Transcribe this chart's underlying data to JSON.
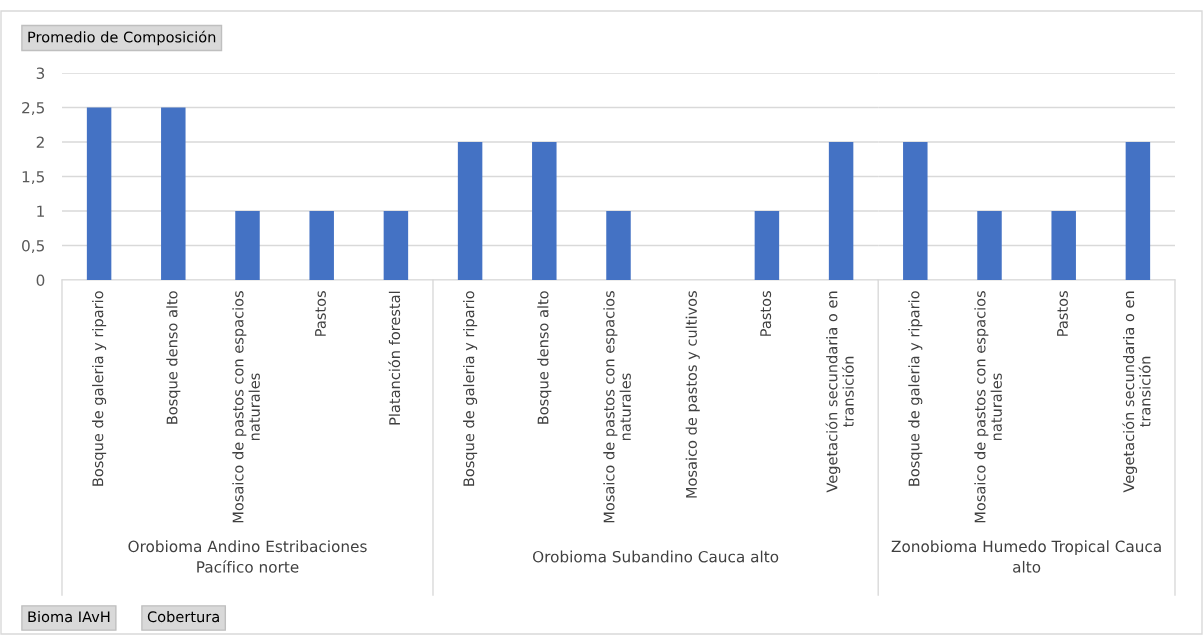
{
  "chart_data": [
    {
      "type": "bar",
      "title": "Promedio de Composición",
      "xlabel": "Orobioma Andino Estribaciones Pacífico norte",
      "categories": [
        "Bosque de galeria y ripario",
        "Bosque denso alto",
        "Mosaico de pastos con espacios naturales",
        "Pastos",
        "Platanción forestal"
      ],
      "values": [
        2.5,
        2.5,
        1,
        1,
        1
      ],
      "color": "#4472c4",
      "ylim": [
        0,
        3
      ],
      "yticks": [
        {
          "value": 0,
          "label": "0"
        },
        {
          "value": 0.5,
          "label": "0,5"
        },
        {
          "value": 1,
          "label": "1"
        },
        {
          "value": 1.5,
          "label": "1,5"
        },
        {
          "value": 2,
          "label": "2"
        },
        {
          "value": 2.5,
          "label": "2,5"
        },
        {
          "value": 3,
          "label": "3"
        }
      ],
      "grid": "y",
      "annotations": [
        "Bioma IAvH",
        "Cobertura"
      ]
    },
    {
      "type": "bar",
      "xlabel": "Orobioma Subandino Cauca alto",
      "categories": [
        "Bosque de galeria y ripario",
        "Bosque denso alto",
        "Mosaico de pastos con espacios naturales",
        "Mosaico de pastos y cultivos",
        "Pastos",
        "Vegetación secundaria o en transición"
      ],
      "values": [
        2,
        2,
        1,
        0,
        1,
        2
      ],
      "color": "#4472c4",
      "ylim": [
        0,
        3
      ],
      "yticks": [
        0,
        0.5,
        1,
        1.5,
        2,
        2.5,
        3
      ],
      "grid": "y",
      "tick_labels": "x"
    },
    {
      "type": "bar",
      "xlabel": "Zonobioma Humedo Tropical Cauca alto",
      "categories": [
        "Bosque de galeria y ripario",
        "Mosaico de pastos con espacios naturales",
        "Pastos",
        "Vegetación secundaria o en transición"
      ],
      "values": [
        2,
        1,
        1,
        2
      ],
      "color": "#4472c4",
      "ylim": [
        0,
        3
      ],
      "yticks": [
        0,
        0.5,
        1,
        1.5,
        2,
        2.5,
        3
      ],
      "grid": "y",
      "tick_labels": "x"
    }
  ]
}
